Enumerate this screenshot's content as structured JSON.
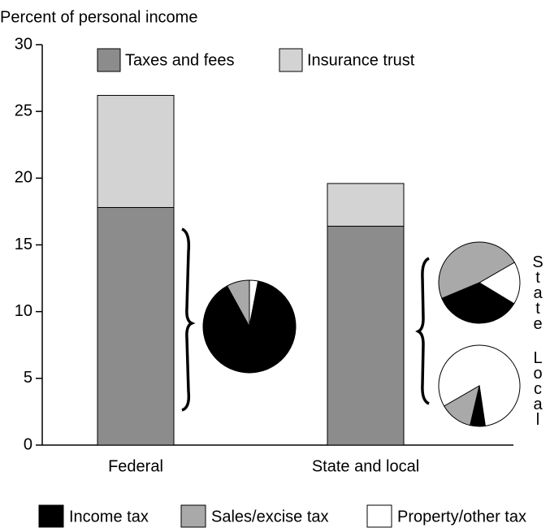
{
  "chart_data": [
    {
      "type": "bar",
      "stacked": true,
      "y_label": "Percent of personal income",
      "categories": [
        "Federal",
        "State and local"
      ],
      "series": [
        {
          "name": "Taxes and fees",
          "color": "#8c8c8c",
          "values": [
            17.8,
            16.4
          ]
        },
        {
          "name": "Insurance trust",
          "color": "#d3d3d3",
          "values": [
            8.4,
            3.2
          ]
        }
      ],
      "ylim": [
        0,
        30
      ],
      "yticks": [
        0,
        5,
        10,
        15,
        20,
        25,
        30
      ]
    },
    {
      "type": "pie",
      "values": [
        89,
        8,
        3
      ]
    },
    {
      "type": "pie",
      "label": "State",
      "values": [
        35,
        48,
        17
      ]
    },
    {
      "type": "pie",
      "label": "Local",
      "values": [
        6,
        13,
        81
      ]
    }
  ],
  "pie_legend": {
    "categories": [
      "Income tax",
      "Sales/excise tax",
      "Property/other tax"
    ],
    "colors": [
      "#000000",
      "#a9a9a9",
      "#ffffff"
    ]
  }
}
